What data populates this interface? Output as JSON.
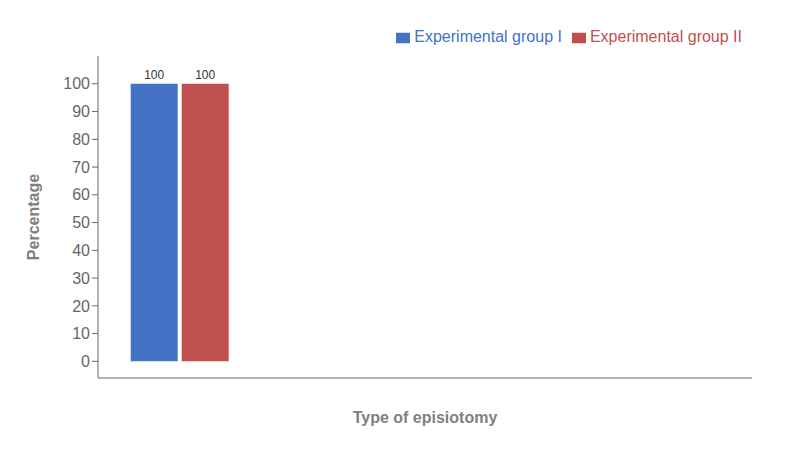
{
  "chart_data": {
    "type": "bar",
    "xlabel": "Type of episiotomy",
    "ylabel": "Percentage",
    "categories": [
      null,
      null,
      null,
      null
    ],
    "series": [
      {
        "name": "Experimental group I",
        "color": "#4472C4",
        "values": [
          100,
          0,
          0,
          0
        ]
      },
      {
        "name": "Experimental group II",
        "color": "#C0504D",
        "values": [
          100,
          0,
          0,
          0
        ]
      }
    ],
    "ylim": [
      -6,
      110
    ],
    "yticks": [
      0,
      10,
      20,
      30,
      40,
      50,
      60,
      70,
      80,
      90,
      100
    ],
    "data_labels": true,
    "legend": "upper right",
    "tick_labels": "y"
  }
}
